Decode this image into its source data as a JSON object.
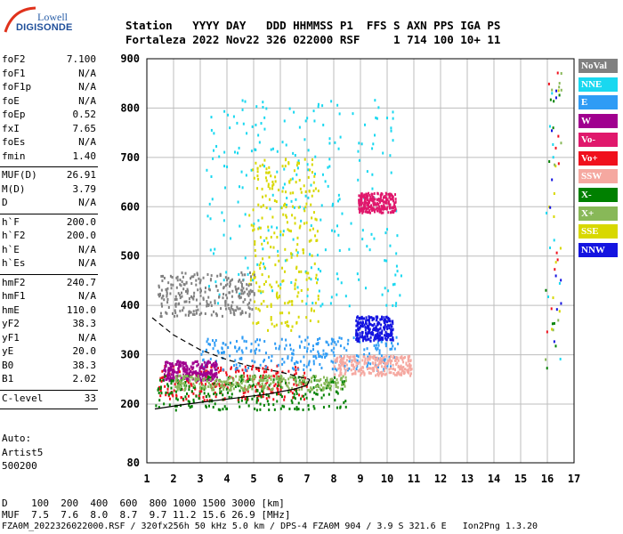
{
  "logo": {
    "line1": "Lowell",
    "line2": "DIGISONDE"
  },
  "header": {
    "row1": "Station   YYYY DAY   DDD HHMMSS P1  FFS S AXN PPS IGA PS",
    "row2": "Fortaleza 2022 Nov22 326 022000 RSF     1 714 100 10+ 11"
  },
  "params_group1": [
    {
      "key": "foF2",
      "value": "7.100"
    },
    {
      "key": "foF1",
      "value": "N/A"
    },
    {
      "key": "foF1p",
      "value": "N/A"
    },
    {
      "key": "foE",
      "value": "N/A"
    },
    {
      "key": "foEp",
      "value": "0.52"
    },
    {
      "key": "fxI",
      "value": "7.65"
    },
    {
      "key": "foEs",
      "value": "N/A"
    },
    {
      "key": "fmin",
      "value": "1.40"
    }
  ],
  "params_group2": [
    {
      "key": "MUF(D)",
      "value": "26.91"
    },
    {
      "key": "M(D)",
      "value": "3.79"
    },
    {
      "key": "D",
      "value": "N/A"
    }
  ],
  "params_group3": [
    {
      "key": "h`F",
      "value": "200.0"
    },
    {
      "key": "h`F2",
      "value": "200.0"
    },
    {
      "key": "h`E",
      "value": "N/A"
    },
    {
      "key": "h`Es",
      "value": "N/A"
    }
  ],
  "params_group4": [
    {
      "key": "hmF2",
      "value": "240.7"
    },
    {
      "key": "hmF1",
      "value": "N/A"
    },
    {
      "key": "hmE",
      "value": "110.0"
    },
    {
      "key": "yF2",
      "value": "38.3"
    },
    {
      "key": "yF1",
      "value": "N/A"
    },
    {
      "key": "yE",
      "value": "20.0"
    },
    {
      "key": "B0",
      "value": "38.3"
    },
    {
      "key": "B1",
      "value": "2.02"
    }
  ],
  "params_group5": [
    {
      "key": "C-level",
      "value": "33"
    }
  ],
  "notes": [
    "Auto:",
    "Artist5",
    "500200"
  ],
  "legend": [
    {
      "label": "NoVal",
      "color": "#808080"
    },
    {
      "label": "NNE",
      "color": "#19d8f0"
    },
    {
      "label": "E",
      "color": "#2f9cf5"
    },
    {
      "label": "W",
      "color": "#a0008f"
    },
    {
      "label": "Vo-",
      "color": "#e0186c"
    },
    {
      "label": "Vo+",
      "color": "#f0101c"
    },
    {
      "label": "SSW",
      "color": "#f5a8a0"
    },
    {
      "label": "X-",
      "color": "#008000"
    },
    {
      "label": "X+",
      "color": "#88b858"
    },
    {
      "label": "SSE",
      "color": "#d8d800"
    },
    {
      "label": "NNW",
      "color": "#1414e0"
    }
  ],
  "footer": {
    "row1": "D    100  200  400  600  800 1000 1500 3000 [km]",
    "row2": "MUF  7.5  7.6  8.0  8.7  9.7 11.2 15.6 26.9 [MHz]",
    "row3": "FZA0M_2022326022000.RSF / 320fx256h 50 kHz 5.0 km / DPS-4 FZA0M 904 / 3.9 S 321.6 E   Ion2Png 1.3.20"
  },
  "chart_data": {
    "type": "scatter",
    "title": "",
    "xlabel": "",
    "ylabel": "",
    "xlim": [
      1,
      17
    ],
    "ylim": [
      80,
      900
    ],
    "x_ticks": [
      1,
      2,
      3,
      4,
      5,
      6,
      7,
      8,
      9,
      10,
      11,
      12,
      13,
      14,
      15,
      16,
      17
    ],
    "y_ticks": [
      80,
      200,
      300,
      400,
      500,
      600,
      700,
      800,
      900
    ],
    "grid": true,
    "legend_position": "right",
    "clusters": [
      {
        "series": "Vo+",
        "x": [
          1.4,
          7.0
        ],
        "y": [
          210,
          280
        ]
      },
      {
        "series": "E",
        "x": [
          3.0,
          10.4
        ],
        "y": [
          270,
          340
        ]
      },
      {
        "series": "W",
        "x": [
          1.6,
          3.6
        ],
        "y": [
          250,
          290
        ]
      },
      {
        "series": "X-",
        "x": [
          1.3,
          8.5
        ],
        "y": [
          190,
          260
        ]
      },
      {
        "series": "SSW",
        "x": [
          8.0,
          10.9
        ],
        "y": [
          260,
          300
        ]
      },
      {
        "series": "NNE",
        "x": [
          3.2,
          10.5
        ],
        "y": [
          400,
          820
        ]
      },
      {
        "series": "SSE",
        "x": [
          4.8,
          7.4
        ],
        "y": [
          350,
          700
        ]
      },
      {
        "series": "Vo-",
        "x": [
          8.9,
          10.3
        ],
        "y": [
          590,
          630
        ]
      },
      {
        "series": "NoVal",
        "x": [
          1.4,
          5.0
        ],
        "y": [
          380,
          470
        ]
      },
      {
        "series": "X+",
        "x": [
          2.0,
          8.5
        ],
        "y": [
          230,
          260
        ]
      },
      {
        "series": "NNW",
        "x": [
          8.8,
          10.2
        ],
        "y": [
          330,
          380
        ]
      }
    ],
    "traces": [
      {
        "name": "profile",
        "style": "solid",
        "x": [
          1.3,
          2.5,
          4.0,
          5.5,
          6.5,
          7.0,
          7.1
        ],
        "y": [
          190,
          200,
          210,
          220,
          230,
          238,
          250
        ]
      },
      {
        "name": "profile-extrapolated",
        "style": "dashed",
        "x": [
          1.2,
          2.0,
          3.0,
          4.0,
          5.0,
          6.0,
          7.1
        ],
        "y": [
          375,
          340,
          310,
          290,
          275,
          265,
          250
        ]
      }
    ]
  }
}
